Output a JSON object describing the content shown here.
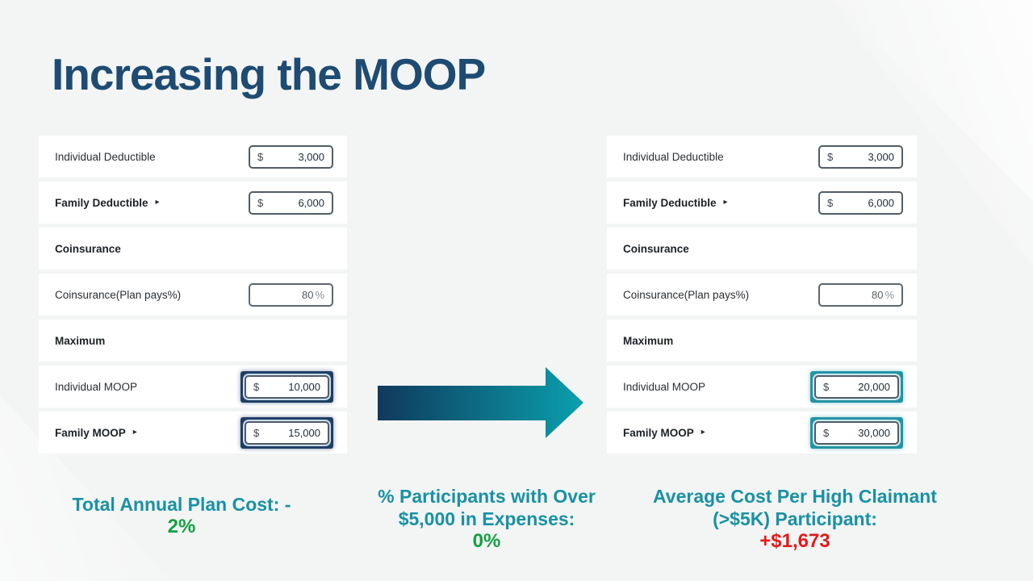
{
  "slide": {
    "title": "Increasing the MOOP"
  },
  "panels": {
    "left": {
      "highlight_style": "navy",
      "rows": [
        {
          "kind": "field",
          "name": "individual-deductible",
          "label": "Individual Deductible",
          "bold": false,
          "expander": false,
          "prefix": "$",
          "value": "3,000",
          "suffix": "",
          "muted": false,
          "highlight": false
        },
        {
          "kind": "field",
          "name": "family-deductible",
          "label": "Family Deductible",
          "bold": true,
          "expander": true,
          "prefix": "$",
          "value": "6,000",
          "suffix": "",
          "muted": false,
          "highlight": false
        },
        {
          "kind": "header",
          "name": "coinsurance-section",
          "label": "Coinsurance"
        },
        {
          "kind": "field",
          "name": "coinsurance-plan-pays",
          "label": "Coinsurance(Plan pays%)",
          "bold": false,
          "expander": false,
          "prefix": "",
          "value": "80",
          "suffix": "%",
          "muted": true,
          "highlight": false
        },
        {
          "kind": "header",
          "name": "maximum-section",
          "label": "Maximum"
        },
        {
          "kind": "field",
          "name": "individual-moop",
          "label": "Individual MOOP",
          "bold": false,
          "expander": false,
          "prefix": "$",
          "value": "10,000",
          "suffix": "",
          "muted": false,
          "highlight": true
        },
        {
          "kind": "field",
          "name": "family-moop",
          "label": "Family MOOP",
          "bold": true,
          "expander": true,
          "prefix": "$",
          "value": "15,000",
          "suffix": "",
          "muted": false,
          "highlight": true
        }
      ]
    },
    "right": {
      "highlight_style": "teal",
      "rows": [
        {
          "kind": "field",
          "name": "individual-deductible",
          "label": "Individual Deductible",
          "bold": false,
          "expander": false,
          "prefix": "$",
          "value": "3,000",
          "suffix": "",
          "muted": false,
          "highlight": false
        },
        {
          "kind": "field",
          "name": "family-deductible",
          "label": "Family Deductible",
          "bold": true,
          "expander": true,
          "prefix": "$",
          "value": "6,000",
          "suffix": "",
          "muted": false,
          "highlight": false
        },
        {
          "kind": "header",
          "name": "coinsurance-section",
          "label": "Coinsurance"
        },
        {
          "kind": "field",
          "name": "coinsurance-plan-pays",
          "label": "Coinsurance(Plan pays%)",
          "bold": false,
          "expander": false,
          "prefix": "",
          "value": "80",
          "suffix": "%",
          "muted": true,
          "highlight": false
        },
        {
          "kind": "header",
          "name": "maximum-section",
          "label": "Maximum"
        },
        {
          "kind": "field",
          "name": "individual-moop",
          "label": "Individual MOOP",
          "bold": false,
          "expander": false,
          "prefix": "$",
          "value": "20,000",
          "suffix": "",
          "muted": false,
          "highlight": true
        },
        {
          "kind": "field",
          "name": "family-moop",
          "label": "Family MOOP",
          "bold": true,
          "expander": true,
          "prefix": "$",
          "value": "30,000",
          "suffix": "",
          "muted": false,
          "highlight": true
        }
      ]
    }
  },
  "callouts": [
    {
      "name": "total-annual-plan-cost",
      "label": "Total Annual Plan Cost: -",
      "value": "2%",
      "value_color": "green"
    },
    {
      "name": "participants-over-5k",
      "label": "% Participants with Over $5,000 in Expenses:",
      "value": "0%",
      "value_color": "green"
    },
    {
      "name": "avg-cost-per-high-claimant",
      "label": "Average Cost Per High Claimant (>$5K) Participant:",
      "value": "+$1,673",
      "value_color": "red"
    }
  ],
  "icons": {
    "expand_arrow": "▸",
    "transition_arrow": "right-arrow"
  },
  "colors": {
    "background": "#f3f4f4",
    "title": "#1d4b72",
    "teal_text": "#1892a4",
    "green": "#12a142",
    "red": "#e11a1a",
    "navy_highlight": "#1e3e66",
    "teal_highlight": "#2295a5",
    "arrow_gradient_start": "#10395d",
    "arrow_gradient_end": "#0aa0ad",
    "row_background": "#ffffff",
    "input_border": "#515c66",
    "label_text": "#2b2f33"
  }
}
